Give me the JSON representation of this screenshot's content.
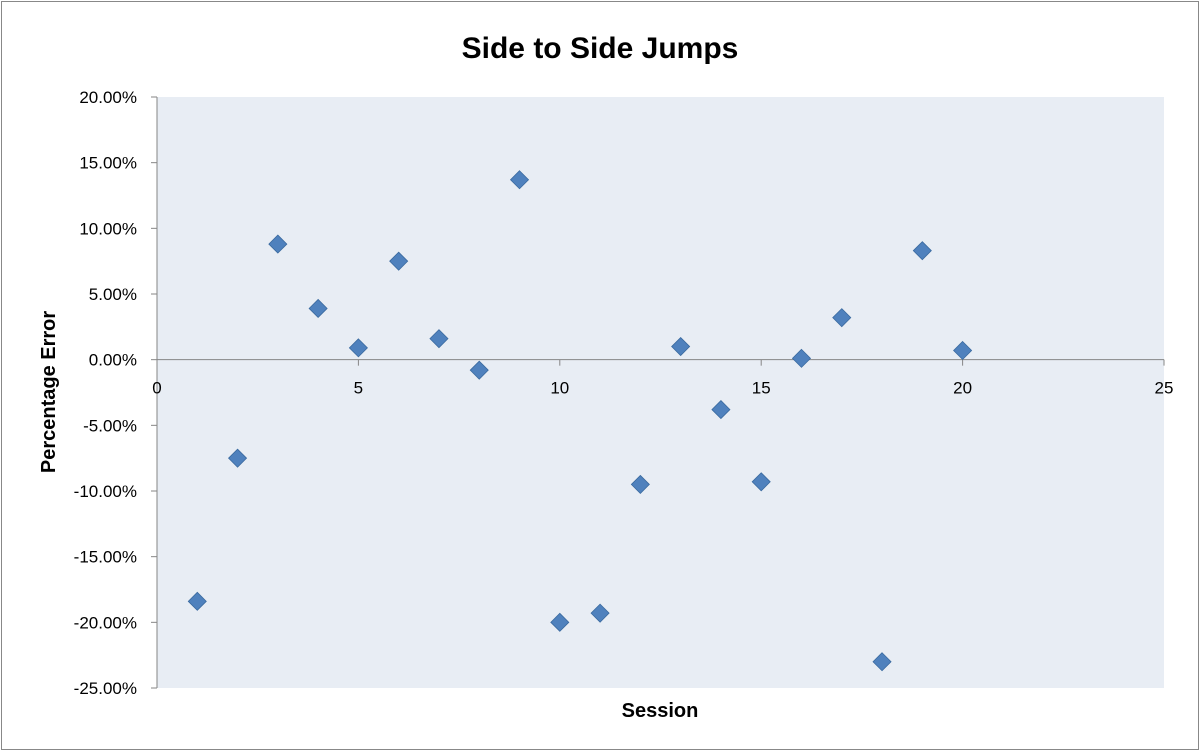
{
  "chart_data": {
    "type": "scatter",
    "title": "Side to Side Jumps",
    "xlabel": "Session",
    "ylabel": "Percentage Error",
    "xlim": [
      0,
      25
    ],
    "ylim": [
      -25,
      20
    ],
    "x_ticks": [
      0,
      5,
      10,
      15,
      20,
      25
    ],
    "x_tick_labels": [
      "0",
      "5",
      "10",
      "15",
      "20",
      "25"
    ],
    "y_ticks": [
      20,
      15,
      10,
      5,
      0,
      -5,
      -10,
      -15,
      -20,
      -25
    ],
    "y_tick_labels": [
      "20.00%",
      "15.00%",
      "10.00%",
      "5.00%",
      "0.00%",
      "-5.00%",
      "-10.00%",
      "-15.00%",
      "-20.00%",
      "-25.00%"
    ],
    "grid": false,
    "plot_background": "#e8edf4",
    "marker": "diamond",
    "marker_color": "#4f81bd",
    "series": [
      {
        "x": [
          1,
          2,
          3,
          4,
          5,
          6,
          7,
          8,
          9,
          10,
          11,
          12,
          13,
          14,
          15,
          16,
          17,
          18,
          19,
          20
        ],
        "y": [
          -18.4,
          -7.5,
          8.8,
          3.9,
          0.9,
          7.5,
          1.6,
          -0.8,
          13.7,
          -20.0,
          -19.3,
          -9.5,
          1.0,
          -3.8,
          -9.3,
          0.1,
          3.2,
          -23.0,
          8.3,
          0.7
        ]
      }
    ]
  }
}
